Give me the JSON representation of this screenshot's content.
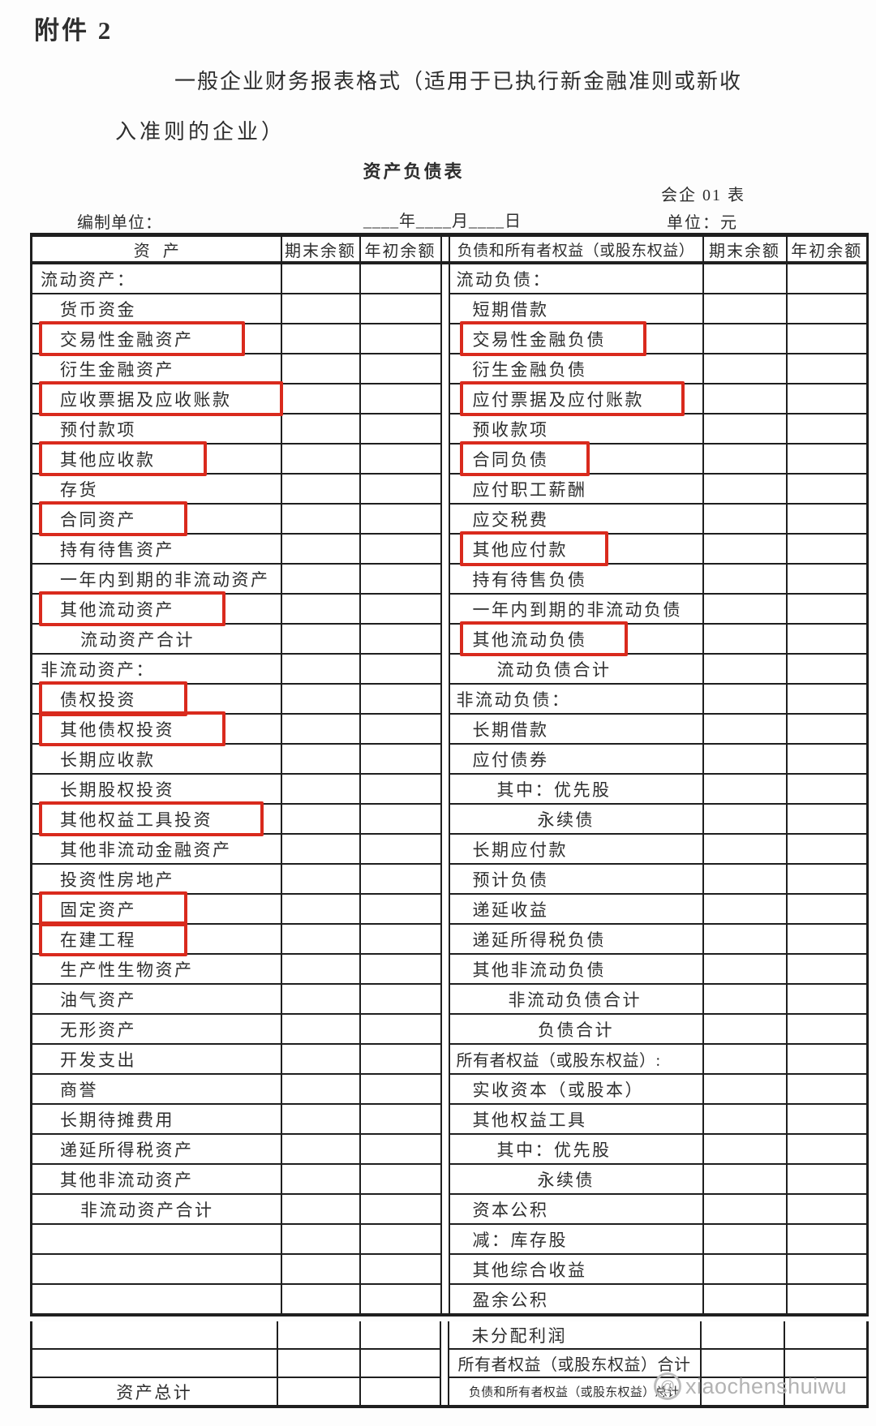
{
  "doc": {
    "attachment": "附件 2",
    "title_line1": "一般企业财务报表格式（适用于已执行新金融准则或新收",
    "title_line2": "入准则的企业）",
    "sheet_title": "资产负债表",
    "form_code": "会企 01 表",
    "prepared_by": "编制单位：",
    "date_blank": "____年____月____日",
    "unit": "单位：元"
  },
  "header": {
    "asset": "资产",
    "ending": "期末余额",
    "beginning": "年初余额",
    "liability": "负债和所有者权益（或股东权益）"
  },
  "rows": [
    {
      "a": {
        "t": "流动资产：",
        "lv": 0
      },
      "b": {
        "t": "流动负债：",
        "lv": 0
      }
    },
    {
      "a": {
        "t": "货币资金",
        "lv": 1
      },
      "b": {
        "t": "短期借款",
        "lv": 1
      }
    },
    {
      "a": {
        "t": "交易性金融资产",
        "lv": 1,
        "hl": true
      },
      "b": {
        "t": "交易性金融负债",
        "lv": 1,
        "hl": true
      }
    },
    {
      "a": {
        "t": "衍生金融资产",
        "lv": 1
      },
      "b": {
        "t": "衍生金融负债",
        "lv": 1
      }
    },
    {
      "a": {
        "t": "应收票据及应收账款",
        "lv": 1,
        "hl": true
      },
      "b": {
        "t": "应付票据及应付账款",
        "lv": 1,
        "hl": true
      }
    },
    {
      "a": {
        "t": "预付款项",
        "lv": 1
      },
      "b": {
        "t": "预收款项",
        "lv": 1
      }
    },
    {
      "a": {
        "t": "其他应收款",
        "lv": 1,
        "hl": true
      },
      "b": {
        "t": "合同负债",
        "lv": 1,
        "hl": true
      }
    },
    {
      "a": {
        "t": "存货",
        "lv": 1
      },
      "b": {
        "t": "应付职工薪酬",
        "lv": 1
      }
    },
    {
      "a": {
        "t": "合同资产",
        "lv": 1,
        "hl": true
      },
      "b": {
        "t": "应交税费",
        "lv": 1
      }
    },
    {
      "a": {
        "t": "持有待售资产",
        "lv": 1
      },
      "b": {
        "t": "其他应付款",
        "lv": 1,
        "hl": true
      }
    },
    {
      "a": {
        "t": "一年内到期的非流动资产",
        "lv": 1
      },
      "b": {
        "t": "持有待售负债",
        "lv": 1
      }
    },
    {
      "a": {
        "t": "其他流动资产",
        "lv": 1,
        "hl": true
      },
      "b": {
        "t": "一年内到期的非流动负债",
        "lv": 1
      }
    },
    {
      "a": {
        "t": "流动资产合计",
        "lv": 2
      },
      "b": {
        "t": "其他流动负债",
        "lv": 1,
        "hl": true
      }
    },
    {
      "a": {
        "t": "非流动资产：",
        "lv": 0
      },
      "b": {
        "t": "流动负债合计",
        "lv": 2
      }
    },
    {
      "a": {
        "t": "债权投资",
        "lv": 1,
        "hl": true
      },
      "b": {
        "t": "非流动负债：",
        "lv": 0
      }
    },
    {
      "a": {
        "t": "其他债权投资",
        "lv": 1,
        "hl": true
      },
      "b": {
        "t": "长期借款",
        "lv": 1
      }
    },
    {
      "a": {
        "t": "长期应收款",
        "lv": 1
      },
      "b": {
        "t": "应付债券",
        "lv": 1
      }
    },
    {
      "a": {
        "t": "长期股权投资",
        "lv": 1
      },
      "b": {
        "t": "其中：优先股",
        "lv": 2
      }
    },
    {
      "a": {
        "t": "其他权益工具投资",
        "lv": 1,
        "hl": true
      },
      "b": {
        "t": "永续债",
        "lv": 4
      }
    },
    {
      "a": {
        "t": "其他非流动金融资产",
        "lv": 1
      },
      "b": {
        "t": "长期应付款",
        "lv": 1
      }
    },
    {
      "a": {
        "t": "投资性房地产",
        "lv": 1
      },
      "b": {
        "t": "预计负债",
        "lv": 1
      }
    },
    {
      "a": {
        "t": "固定资产",
        "lv": 1,
        "hl": true
      },
      "b": {
        "t": "递延收益",
        "lv": 1
      }
    },
    {
      "a": {
        "t": "在建工程",
        "lv": 1,
        "hl": true
      },
      "b": {
        "t": "递延所得税负债",
        "lv": 1
      }
    },
    {
      "a": {
        "t": "生产性生物资产",
        "lv": 1
      },
      "b": {
        "t": "其他非流动负债",
        "lv": 1
      }
    },
    {
      "a": {
        "t": "油气资产",
        "lv": 1
      },
      "b": {
        "t": "非流动负债合计",
        "lv": 3
      }
    },
    {
      "a": {
        "t": "无形资产",
        "lv": 1
      },
      "b": {
        "t": "负债合计",
        "lv": "c"
      }
    },
    {
      "a": {
        "t": "开发支出",
        "lv": 1
      },
      "b": {
        "t": "所有者权益（或股东权益）:",
        "lv": 0
      }
    },
    {
      "a": {
        "t": "商誉",
        "lv": 1
      },
      "b": {
        "t": "实收资本（或股本）",
        "lv": 1
      }
    },
    {
      "a": {
        "t": "长期待摊费用",
        "lv": 1
      },
      "b": {
        "t": "其他权益工具",
        "lv": 1
      }
    },
    {
      "a": {
        "t": "递延所得税资产",
        "lv": 1
      },
      "b": {
        "t": "其中：优先股",
        "lv": 2
      }
    },
    {
      "a": {
        "t": "其他非流动资产",
        "lv": 1
      },
      "b": {
        "t": "永续债",
        "lv": 4
      }
    },
    {
      "a": {
        "t": "非流动资产合计",
        "lv": 2
      },
      "b": {
        "t": "资本公积",
        "lv": 1
      }
    },
    {
      "a": {
        "t": ""
      },
      "b": {
        "t": "减：库存股",
        "lv": 1
      }
    },
    {
      "a": {
        "t": ""
      },
      "b": {
        "t": "其他综合收益",
        "lv": 1
      }
    },
    {
      "a": {
        "t": ""
      },
      "b": {
        "t": "盈余公积",
        "lv": 1
      }
    }
  ],
  "bottom_rows": [
    {
      "a": {
        "t": ""
      },
      "b": {
        "t": "未分配利润",
        "lv": 1
      }
    },
    {
      "a": {
        "t": ""
      },
      "b": {
        "t": "所有者权益（或股东权益）合计",
        "lv": "c"
      }
    },
    {
      "a": {
        "t": "资产总计",
        "lv": "c"
      },
      "b": {
        "t": "负债和所有者权益（或股东权益）总计",
        "lv": "c"
      }
    }
  ],
  "watermark": {
    "symbol": "@",
    "handle": "xiaochenshuiwu"
  },
  "colors": {
    "highlight_red": "#d92a1d",
    "table_border": "#1f1f1f",
    "watermark_gray": "#b3b3b3",
    "paper": "#fdfdfd"
  }
}
